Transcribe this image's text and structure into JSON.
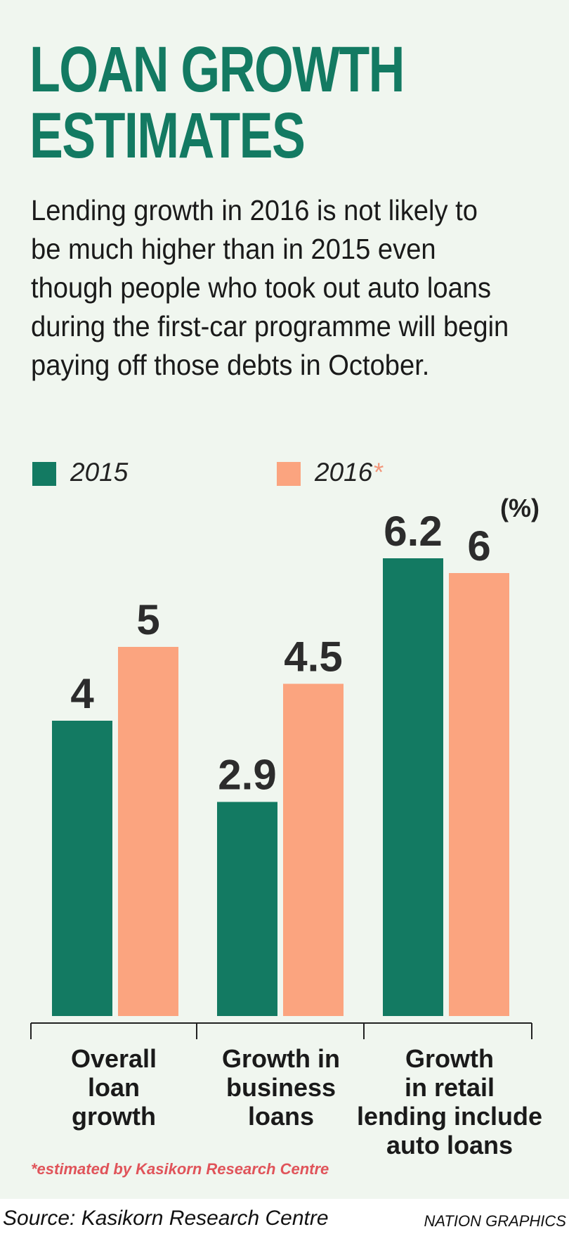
{
  "title_lines": [
    "LOAN GROWTH",
    "ESTIMATES"
  ],
  "subtitle": "Lending growth in 2016 is not likely to be much higher than in 2015 even though people who took out auto loans during the first-car programme will begin paying off those debts in October.",
  "colors": {
    "background": "#f0f6ef",
    "title": "#137a62",
    "series_2015": "#137a62",
    "series_2016": "#fba47f",
    "note": "#e0545a"
  },
  "legend": {
    "s2015": "2015",
    "s2016": "2016",
    "s2016_mark": "*"
  },
  "chart_data": {
    "type": "bar",
    "title": "LOAN GROWTH ESTIMATES",
    "unit": "(%)",
    "categories": [
      [
        "Overall",
        "loan",
        "growth"
      ],
      [
        "Growth in",
        "business",
        "loans"
      ],
      [
        "Growth",
        "in retail",
        "lending include",
        "auto loans"
      ]
    ],
    "series": [
      {
        "name": "2015",
        "values": [
          4,
          2.9,
          6.2
        ],
        "labels": [
          "4",
          "2.9",
          "6.2"
        ]
      },
      {
        "name": "2016*",
        "values": [
          5,
          4.5,
          6
        ],
        "labels": [
          "5",
          "4.5",
          "6"
        ]
      }
    ],
    "ylim": [
      0,
      6.9
    ],
    "grid": false,
    "legend_position": "top-left"
  },
  "note": "*estimated by Kasikorn Research Centre",
  "footer": {
    "source": "Source: Kasikorn Research Centre",
    "credit": "NATION GRAPHICS"
  }
}
